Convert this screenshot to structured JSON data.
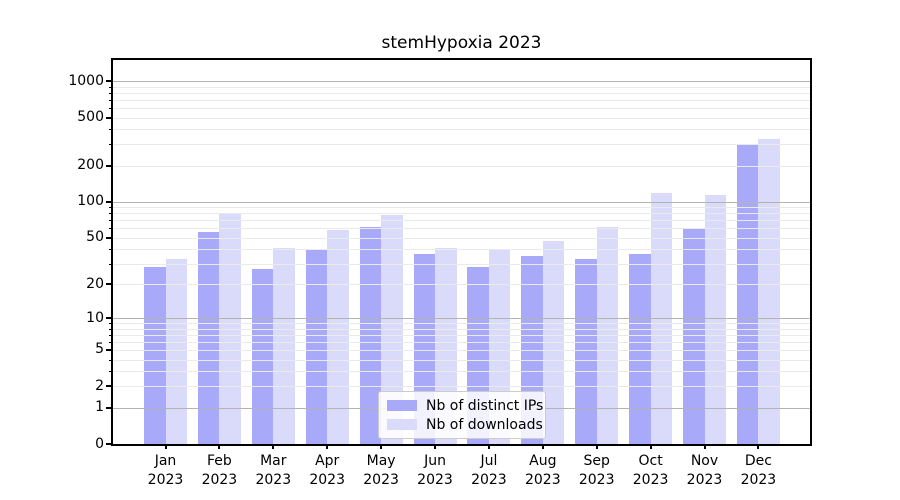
{
  "chart_data": {
    "type": "bar",
    "title": "stemHypoxia 2023",
    "categories": [
      "Jan 2023",
      "Feb 2023",
      "Mar 2023",
      "Apr 2023",
      "May 2023",
      "Jun 2023",
      "Jul 2023",
      "Aug 2023",
      "Sep 2023",
      "Oct 2023",
      "Nov 2023",
      "Dec 2023"
    ],
    "x_tick_months": [
      "Jan",
      "Feb",
      "Mar",
      "Apr",
      "May",
      "Jun",
      "Jul",
      "Aug",
      "Sep",
      "Oct",
      "Nov",
      "Dec"
    ],
    "x_tick_year": "2023",
    "series": [
      {
        "name": "Nb of distinct IPs",
        "color": "#a9a9fa",
        "values": [
          28,
          56,
          27,
          40,
          61,
          36,
          28,
          35,
          33,
          36,
          59,
          295
        ]
      },
      {
        "name": "Nb of downloads",
        "color": "#dadafb",
        "values": [
          33,
          80,
          41,
          58,
          77,
          41,
          40,
          47,
          61,
          119,
          114,
          330
        ]
      }
    ],
    "yscale": "log1p",
    "yticks": [
      1000,
      500,
      200,
      100,
      50,
      20,
      10,
      5,
      2,
      1,
      0
    ],
    "ylim": [
      0,
      1500
    ],
    "grid": true,
    "legend_position": "lower center"
  },
  "colors": {
    "bar_distinct_ips": "#a9a9fa",
    "bar_downloads": "#dadafb",
    "grid_power_of_ten": "#b3b3b3",
    "grid_minor": "#eaeaea",
    "spine": "#000000",
    "background": "#ffffff",
    "legend_border": "#cccccc"
  }
}
